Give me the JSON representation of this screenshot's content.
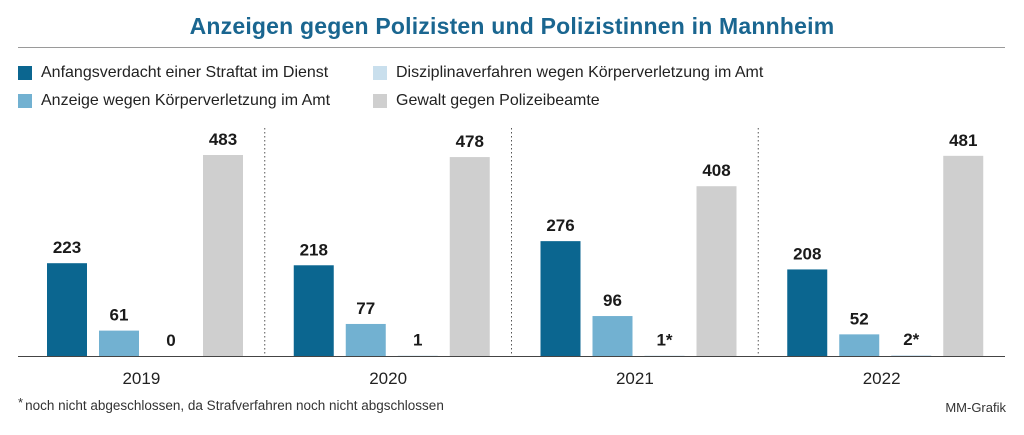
{
  "title": "Anzeigen gegen Polizisten und Polizistinnen in Mannheim",
  "legend": [
    {
      "label": "Anfangsverdacht einer Straftat im Dienst",
      "color": "#0b6690"
    },
    {
      "label": "Anzeige wegen Körperverletzung im Amt",
      "color": "#72b1d1"
    },
    {
      "label": "Disziplinaverfahren wegen Körperverletzung im Amt",
      "color": "#c9dfed"
    },
    {
      "label": "Gewalt gegen Polizeibeamte",
      "color": "#cfcfcf"
    }
  ],
  "chart_data": {
    "type": "bar",
    "categories": [
      "2019",
      "2020",
      "2021",
      "2022"
    ],
    "series": [
      {
        "name": "Anfangsverdacht einer Straftat im Dienst",
        "values": [
          223,
          218,
          276,
          208
        ],
        "labels": [
          "223",
          "218",
          "276",
          "208"
        ]
      },
      {
        "name": "Anzeige wegen Körperverletzung im Amt",
        "values": [
          61,
          77,
          96,
          52
        ],
        "labels": [
          "61",
          "77",
          "96",
          "52"
        ]
      },
      {
        "name": "Disziplinaverfahren wegen Körperverletzung im Amt",
        "values": [
          0,
          1,
          1,
          2
        ],
        "labels": [
          "0",
          "1",
          "1*",
          "2*"
        ]
      },
      {
        "name": "Gewalt gegen Polizeibeamte",
        "values": [
          483,
          478,
          408,
          481
        ],
        "labels": [
          "483",
          "478",
          "408",
          "481"
        ]
      }
    ],
    "ylim": [
      0,
      483
    ],
    "grid": false
  },
  "footnote": {
    "marker": "*",
    "text": "noch nicht abgeschlossen, da Strafverfahren noch nicht abgschlossen"
  },
  "credit": "MM-Grafik"
}
